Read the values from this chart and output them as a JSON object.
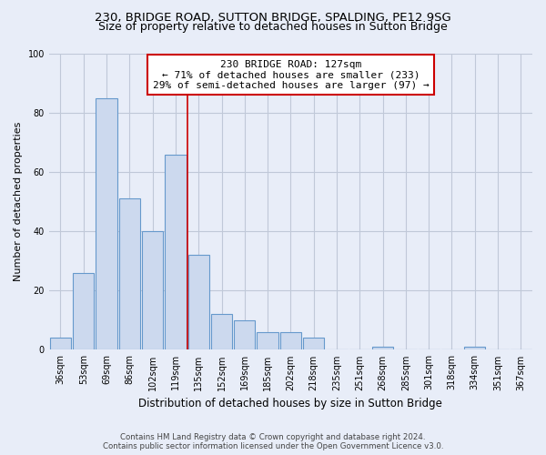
{
  "title": "230, BRIDGE ROAD, SUTTON BRIDGE, SPALDING, PE12 9SG",
  "subtitle": "Size of property relative to detached houses in Sutton Bridge",
  "xlabel": "Distribution of detached houses by size in Sutton Bridge",
  "ylabel": "Number of detached properties",
  "categories": [
    "36sqm",
    "53sqm",
    "69sqm",
    "86sqm",
    "102sqm",
    "119sqm",
    "135sqm",
    "152sqm",
    "169sqm",
    "185sqm",
    "202sqm",
    "218sqm",
    "235sqm",
    "251sqm",
    "268sqm",
    "285sqm",
    "301sqm",
    "318sqm",
    "334sqm",
    "351sqm",
    "367sqm"
  ],
  "values": [
    4,
    26,
    85,
    51,
    40,
    66,
    32,
    12,
    10,
    6,
    6,
    4,
    0,
    0,
    1,
    0,
    0,
    0,
    1,
    0,
    0
  ],
  "bar_color": "#ccd9ee",
  "bar_edge_color": "#6699cc",
  "reference_line_color": "#cc0000",
  "reference_line_x": 5.5,
  "ylim": [
    0,
    100
  ],
  "yticks": [
    0,
    20,
    40,
    60,
    80,
    100
  ],
  "annotation_text_line1": "230 BRIDGE ROAD: 127sqm",
  "annotation_text_line2": "← 71% of detached houses are smaller (233)",
  "annotation_text_line3": "29% of semi-detached houses are larger (97) →",
  "annotation_box_color": "#ffffff",
  "annotation_box_edge": "#cc0000",
  "bg_color": "#e8edf8",
  "grid_color": "#c0c8d8",
  "footer_line1": "Contains HM Land Registry data © Crown copyright and database right 2024.",
  "footer_line2": "Contains public sector information licensed under the Open Government Licence v3.0.",
  "title_fontsize": 9.5,
  "subtitle_fontsize": 9,
  "xlabel_fontsize": 8.5,
  "ylabel_fontsize": 8,
  "tick_fontsize": 7,
  "annotation_fontsize": 8,
  "footer_fontsize": 6.2
}
